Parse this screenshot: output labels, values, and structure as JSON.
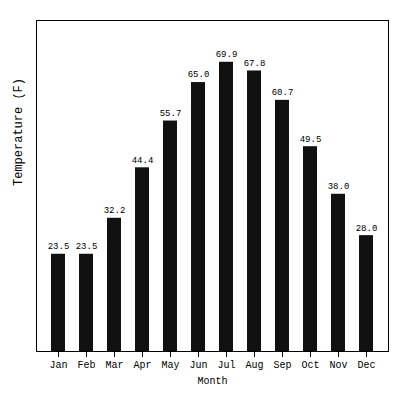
{
  "chart_data": {
    "type": "bar",
    "categories": [
      "Jan",
      "Feb",
      "Mar",
      "Apr",
      "May",
      "Jun",
      "Jul",
      "Aug",
      "Sep",
      "Oct",
      "Nov",
      "Dec"
    ],
    "values": [
      23.5,
      23.5,
      32.2,
      44.4,
      55.7,
      65.0,
      69.9,
      67.8,
      60.7,
      49.5,
      38.0,
      28.0
    ],
    "value_labels": [
      "23.5",
      "23.5",
      "32.2",
      "44.4",
      "55.7",
      "65.0",
      "69.9",
      "67.8",
      "60.7",
      "49.5",
      "38.0",
      "28.0"
    ],
    "color": "#111111",
    "xlabel": "Month",
    "ylabel": "Temperature (F)",
    "ylim": [
      0,
      80
    ],
    "data_labels": true,
    "tick_labels": "x",
    "grid": false
  }
}
